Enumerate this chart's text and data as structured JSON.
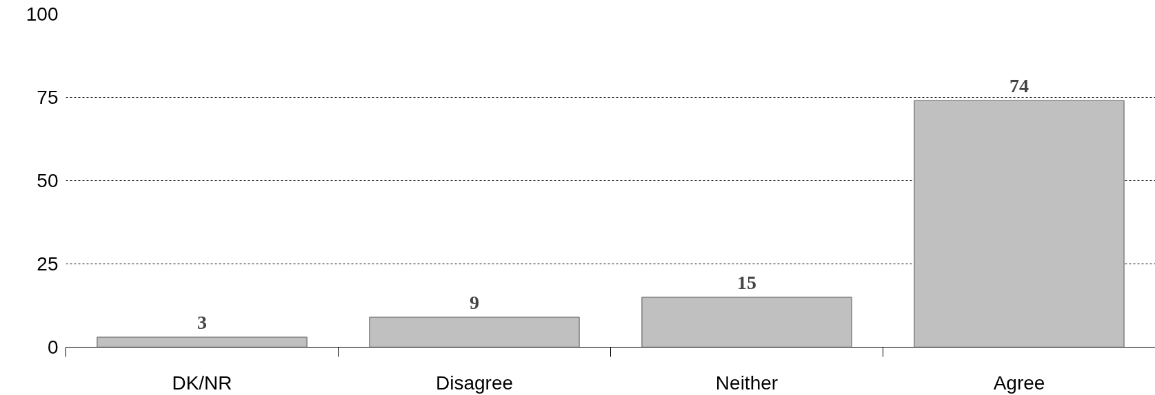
{
  "chart_data": {
    "type": "bar",
    "categories": [
      "DK/NR",
      "Disagree",
      "Neither",
      "Agree"
    ],
    "values": [
      3,
      9,
      15,
      74
    ],
    "color": "#c0c0c0",
    "ylim": [
      0,
      100
    ],
    "yticks": [
      0,
      25,
      50,
      75,
      100
    ],
    "grid": "y",
    "data_labels": true
  }
}
